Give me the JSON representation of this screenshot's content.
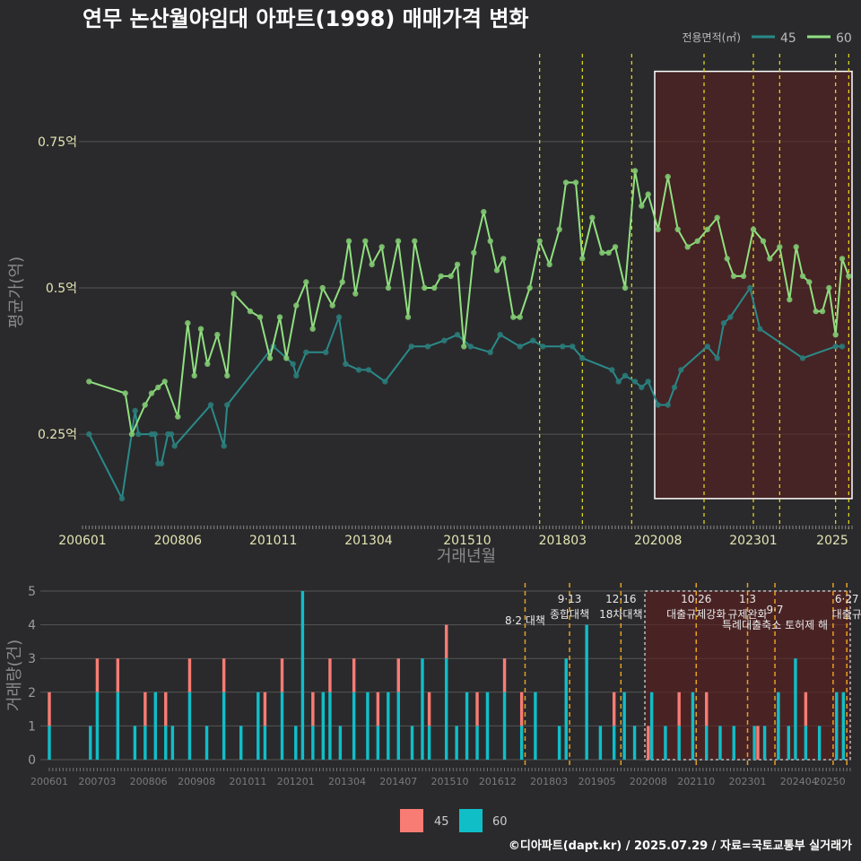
{
  "title": "연무 논산월야임대 아파트(1998) 매매가격 변화",
  "credit": "©디아파트(dapt.kr) / 2025.07.29 / 자료=국토교통부 실거래가",
  "colors": {
    "background": "#2a2a2c",
    "grid": "#555555",
    "s45_line": "#2a8a8a",
    "s45_point": "#2a7a78",
    "s60_line": "#90e080",
    "s60_point": "#7fc870",
    "vline": "#e8e020",
    "vline_bottom": "#e8a020",
    "highlight_fill": "#5a2020",
    "highlight_stroke": "#ffffff",
    "bar45": "#f87c74",
    "bar60": "#10bec8"
  },
  "legend": {
    "title": "전용면적(㎡)",
    "items": [
      {
        "label": "45",
        "color": "#2a8a8a"
      },
      {
        "label": "60",
        "color": "#90e080"
      }
    ]
  },
  "bottom_legend": [
    {
      "label": "45",
      "color": "#f87c74"
    },
    {
      "label": "60",
      "color": "#10bec8"
    }
  ],
  "chart_data": [
    {
      "type": "line",
      "title": "연무 논산월야임대 아파트(1998) 매매가격 변화",
      "xlabel": "거래년월",
      "ylabel": "평균가(억)",
      "x_ticks": [
        "200601",
        "200806",
        "201011",
        "201304",
        "201510",
        "201803",
        "202008",
        "202301",
        "2025"
      ],
      "y_ticks": [
        {
          "value": 0.25,
          "label": "0.25억"
        },
        {
          "value": 0.5,
          "label": "0.5억"
        },
        {
          "value": 0.75,
          "label": "0.75억"
        }
      ],
      "ylim": [
        0.1,
        0.9
      ],
      "x_range": [
        "2006-01",
        "2025-07"
      ],
      "grid": true,
      "legend_position": "top-right",
      "vlines": [
        "2017-08",
        "2018-09",
        "2019-12",
        "2021-10",
        "2023-01",
        "2023-09",
        "2025-02",
        "2025-06"
      ],
      "highlight": {
        "from": "2020-07",
        "to": "2025-07",
        "y_from": 0.14,
        "y_to": 0.87
      },
      "series": [
        {
          "name": "45",
          "points": [
            [
              "2006-03",
              0.25
            ],
            [
              "2007-01",
              0.14
            ],
            [
              "2007-05",
              0.29
            ],
            [
              "2007-06",
              0.25
            ],
            [
              "2007-10",
              0.25
            ],
            [
              "2007-11",
              0.25
            ],
            [
              "2007-12",
              0.2
            ],
            [
              "2008-01",
              0.2
            ],
            [
              "2008-03",
              0.25
            ],
            [
              "2008-04",
              0.25
            ],
            [
              "2008-05",
              0.23
            ],
            [
              "2009-04",
              0.3
            ],
            [
              "2009-08",
              0.23
            ],
            [
              "2009-09",
              0.3
            ],
            [
              "2010-11",
              0.4
            ],
            [
              "2011-05",
              0.37
            ],
            [
              "2011-06",
              0.35
            ],
            [
              "2011-09",
              0.39
            ],
            [
              "2012-03",
              0.39
            ],
            [
              "2012-07",
              0.45
            ],
            [
              "2012-09",
              0.37
            ],
            [
              "2013-01",
              0.36
            ],
            [
              "2013-04",
              0.36
            ],
            [
              "2013-09",
              0.34
            ],
            [
              "2014-05",
              0.4
            ],
            [
              "2014-10",
              0.4
            ],
            [
              "2015-03",
              0.41
            ],
            [
              "2015-07",
              0.42
            ],
            [
              "2015-11",
              0.4
            ],
            [
              "2016-05",
              0.39
            ],
            [
              "2016-08",
              0.42
            ],
            [
              "2017-02",
              0.4
            ],
            [
              "2017-06",
              0.41
            ],
            [
              "2017-09",
              0.4
            ],
            [
              "2018-03",
              0.4
            ],
            [
              "2018-06",
              0.4
            ],
            [
              "2018-09",
              0.38
            ],
            [
              "2019-06",
              0.36
            ],
            [
              "2019-08",
              0.34
            ],
            [
              "2019-10",
              0.35
            ],
            [
              "2020-01",
              0.34
            ],
            [
              "2020-03",
              0.33
            ],
            [
              "2020-05",
              0.34
            ],
            [
              "2020-08",
              0.3
            ],
            [
              "2020-11",
              0.3
            ],
            [
              "2021-01",
              0.33
            ],
            [
              "2021-03",
              0.36
            ],
            [
              "2021-11",
              0.4
            ],
            [
              "2022-02",
              0.38
            ],
            [
              "2022-04",
              0.44
            ],
            [
              "2022-06",
              0.45
            ],
            [
              "2022-12",
              0.5
            ],
            [
              "2023-03",
              0.43
            ],
            [
              "2024-04",
              0.38
            ],
            [
              "2025-02",
              0.4
            ],
            [
              "2025-04",
              0.4
            ]
          ]
        },
        {
          "name": "60",
          "points": [
            [
              "2006-03",
              0.34
            ],
            [
              "2007-02",
              0.32
            ],
            [
              "2007-04",
              0.25
            ],
            [
              "2007-08",
              0.3
            ],
            [
              "2007-10",
              0.32
            ],
            [
              "2007-12",
              0.33
            ],
            [
              "2008-02",
              0.34
            ],
            [
              "2008-06",
              0.28
            ],
            [
              "2008-09",
              0.44
            ],
            [
              "2008-11",
              0.35
            ],
            [
              "2009-01",
              0.43
            ],
            [
              "2009-03",
              0.37
            ],
            [
              "2009-06",
              0.42
            ],
            [
              "2009-09",
              0.35
            ],
            [
              "2009-11",
              0.49
            ],
            [
              "2010-04",
              0.46
            ],
            [
              "2010-07",
              0.45
            ],
            [
              "2010-10",
              0.38
            ],
            [
              "2011-01",
              0.45
            ],
            [
              "2011-03",
              0.38
            ],
            [
              "2011-06",
              0.47
            ],
            [
              "2011-09",
              0.51
            ],
            [
              "2011-11",
              0.43
            ],
            [
              "2012-02",
              0.5
            ],
            [
              "2012-05",
              0.47
            ],
            [
              "2012-08",
              0.51
            ],
            [
              "2012-10",
              0.58
            ],
            [
              "2012-12",
              0.49
            ],
            [
              "2013-03",
              0.58
            ],
            [
              "2013-05",
              0.54
            ],
            [
              "2013-08",
              0.57
            ],
            [
              "2013-10",
              0.5
            ],
            [
              "2014-01",
              0.58
            ],
            [
              "2014-04",
              0.45
            ],
            [
              "2014-06",
              0.58
            ],
            [
              "2014-09",
              0.5
            ],
            [
              "2014-12",
              0.5
            ],
            [
              "2015-02",
              0.52
            ],
            [
              "2015-05",
              0.52
            ],
            [
              "2015-07",
              0.54
            ],
            [
              "2015-09",
              0.4
            ],
            [
              "2015-12",
              0.56
            ],
            [
              "2016-03",
              0.63
            ],
            [
              "2016-05",
              0.58
            ],
            [
              "2016-07",
              0.53
            ],
            [
              "2016-09",
              0.55
            ],
            [
              "2016-12",
              0.45
            ],
            [
              "2017-02",
              0.45
            ],
            [
              "2017-05",
              0.5
            ],
            [
              "2017-08",
              0.58
            ],
            [
              "2017-11",
              0.54
            ],
            [
              "2018-02",
              0.6
            ],
            [
              "2018-04",
              0.68
            ],
            [
              "2018-07",
              0.68
            ],
            [
              "2018-09",
              0.55
            ],
            [
              "2018-12",
              0.62
            ],
            [
              "2019-03",
              0.56
            ],
            [
              "2019-05",
              0.56
            ],
            [
              "2019-07",
              0.57
            ],
            [
              "2019-10",
              0.5
            ],
            [
              "2020-01",
              0.7
            ],
            [
              "2020-03",
              0.64
            ],
            [
              "2020-05",
              0.66
            ],
            [
              "2020-08",
              0.6
            ],
            [
              "2020-11",
              0.69
            ],
            [
              "2021-02",
              0.6
            ],
            [
              "2021-05",
              0.57
            ],
            [
              "2021-08",
              0.58
            ],
            [
              "2021-11",
              0.6
            ],
            [
              "2022-02",
              0.62
            ],
            [
              "2022-05",
              0.55
            ],
            [
              "2022-07",
              0.52
            ],
            [
              "2022-10",
              0.52
            ],
            [
              "2023-01",
              0.6
            ],
            [
              "2023-04",
              0.58
            ],
            [
              "2023-06",
              0.55
            ],
            [
              "2023-09",
              0.57
            ],
            [
              "2023-12",
              0.48
            ],
            [
              "2024-02",
              0.57
            ],
            [
              "2024-04",
              0.52
            ],
            [
              "2024-06",
              0.51
            ],
            [
              "2024-08",
              0.46
            ],
            [
              "2024-10",
              0.46
            ],
            [
              "2024-12",
              0.5
            ],
            [
              "2025-02",
              0.42
            ],
            [
              "2025-04",
              0.55
            ],
            [
              "2025-06",
              0.52
            ]
          ]
        }
      ]
    },
    {
      "type": "bar",
      "stacked": true,
      "xlabel": "",
      "ylabel": "거래량(건)",
      "ylim": [
        0,
        5
      ],
      "y_ticks": [
        0,
        1,
        2,
        3,
        4,
        5
      ],
      "x_ticks": [
        "200601",
        "200703",
        "200806",
        "200908",
        "201011",
        "201201",
        "201304",
        "201407",
        "201510",
        "201612",
        "201803",
        "201905",
        "202008",
        "202110",
        "202301",
        "202404",
        "20250"
      ],
      "x_range": [
        "2006-01",
        "2025-07"
      ],
      "grid": true,
      "legend_position": "bottom",
      "highlight": {
        "from": "2020-07",
        "to": "2025-07"
      },
      "vlines": [
        "2017-08",
        "2018-09",
        "2019-12",
        "2021-10",
        "2023-01",
        "2023-09",
        "2025-02",
        "2025-06"
      ],
      "annotations": [
        {
          "month": "2017-08",
          "lines": [
            "8·2 대책"
          ],
          "row": 2
        },
        {
          "month": "2018-09",
          "lines": [
            "9·13",
            "종합대책"
          ],
          "row": 0
        },
        {
          "month": "2019-12",
          "lines": [
            "12·16",
            "18차대책"
          ],
          "row": 0
        },
        {
          "month": "2021-10",
          "lines": [
            "10·26",
            "대출규제강화"
          ],
          "row": 0
        },
        {
          "month": "2023-01",
          "lines": [
            "1·3",
            "규제완화"
          ],
          "row": 0
        },
        {
          "month": "2023-09",
          "lines": [
            "9·7",
            "특례대출축소 토허제 해"
          ],
          "row": 1
        },
        {
          "month": "2025-06",
          "lines": [
            "6·27",
            "대출규"
          ],
          "row": 0
        }
      ],
      "series": [
        {
          "name": "45",
          "values": {
            "2006-01": 1,
            "2007-03": 1,
            "2007-09": 1,
            "2008-05": 1,
            "2008-11": 1,
            "2009-06": 1,
            "2010-04": 1,
            "2011-04": 1,
            "2011-09": 1,
            "2012-06": 1,
            "2012-11": 1,
            "2013-06": 1,
            "2014-01": 1,
            "2014-07": 1,
            "2015-04": 1,
            "2015-09": 1,
            "2016-06": 1,
            "2017-02": 1,
            "2017-07": 1,
            "2019-10": 1,
            "2020-08": 1,
            "2021-05": 1,
            "2022-01": 1,
            "2023-04": 1,
            "2024-06": 1
          }
        },
        {
          "name": "60",
          "values": {
            "2006-01": 1,
            "2007-01": 1,
            "2007-03": 2,
            "2007-09": 2,
            "2008-02": 1,
            "2008-05": 1,
            "2008-08": 2,
            "2008-11": 1,
            "2009-01": 1,
            "2009-06": 2,
            "2009-11": 1,
            "2010-04": 2,
            "2010-09": 1,
            "2011-02": 2,
            "2011-04": 1,
            "2011-09": 2,
            "2012-01": 1,
            "2012-03": 5,
            "2012-06": 1,
            "2012-09": 2,
            "2012-11": 2,
            "2013-02": 1,
            "2013-06": 2,
            "2013-10": 2,
            "2014-01": 1,
            "2014-04": 2,
            "2014-07": 2,
            "2014-11": 1,
            "2015-02": 3,
            "2015-04": 1,
            "2015-09": 3,
            "2015-12": 1,
            "2016-03": 2,
            "2016-06": 1,
            "2016-09": 2,
            "2017-02": 2,
            "2017-07": 1,
            "2017-11": 2,
            "2018-06": 1,
            "2018-08": 3,
            "2019-02": 4,
            "2019-06": 1,
            "2019-10": 1,
            "2020-01": 2,
            "2020-04": 1,
            "2020-09": 2,
            "2021-01": 1,
            "2021-05": 1,
            "2021-09": 2,
            "2022-01": 1,
            "2022-05": 1,
            "2022-09": 1,
            "2023-03": 1,
            "2023-06": 1,
            "2023-10": 2,
            "2024-01": 1,
            "2024-03": 3,
            "2024-06": 1,
            "2024-10": 1,
            "2025-03": 2,
            "2025-05": 2
          }
        }
      ]
    }
  ]
}
